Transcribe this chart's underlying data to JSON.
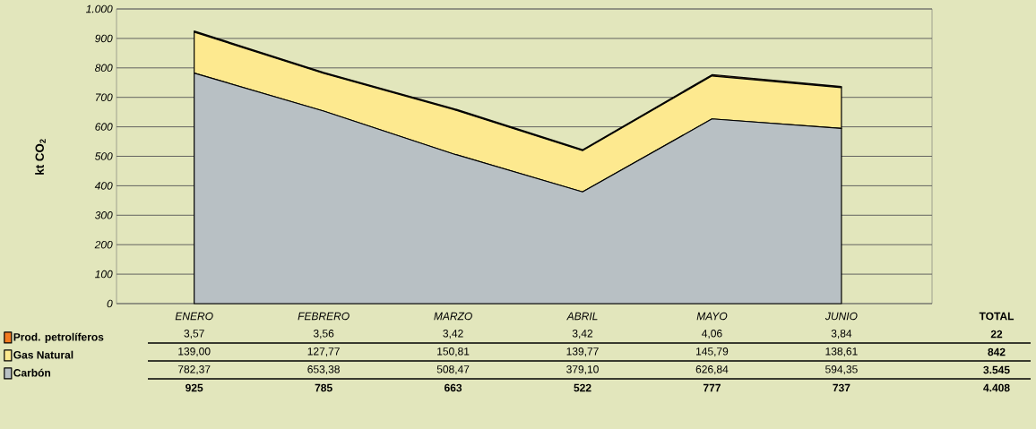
{
  "chart_data": {
    "type": "area",
    "stacked": true,
    "ylabel": "kt CO$_{2}$",
    "categories": [
      "ENERO",
      "FEBRERO",
      "MARZO",
      "ABRIL",
      "MAYO",
      "JUNIO"
    ],
    "series": [
      {
        "name": "Carbón",
        "color": "#b8c0c4",
        "values": [
          782.37,
          653.38,
          508.47,
          379.1,
          626.84,
          594.35
        ],
        "value_labels": [
          "782,37",
          "653,38",
          "508,47",
          "379,10",
          "626,84",
          "594,35"
        ]
      },
      {
        "name": "Gas Natural",
        "color": "#fde98f",
        "values": [
          139.0,
          127.77,
          150.81,
          139.77,
          145.79,
          138.61
        ],
        "value_labels": [
          "139,00",
          "127,77",
          "150,81",
          "139,77",
          "145,79",
          "138,61"
        ]
      },
      {
        "name": "Prod. petrolíferos",
        "color": "#f47b20",
        "values": [
          3.57,
          3.56,
          3.42,
          3.42,
          4.06,
          3.84
        ],
        "value_labels": [
          "3,57",
          "3,56",
          "3,42",
          "3,42",
          "4,06",
          "3,84"
        ]
      }
    ],
    "annotations": [
      "TOTAL",
      "22",
      "842",
      "3.545",
      "4.408",
      "925",
      "785",
      "663",
      "522",
      "777",
      "737"
    ],
    "ylim": [
      0,
      1000
    ],
    "yticks": [
      0,
      100,
      200,
      300,
      400,
      500,
      600,
      700,
      800,
      900,
      {
        "value": 1000,
        "label": "1.000"
      }
    ],
    "grid": "y",
    "legend": "bottom left"
  }
}
